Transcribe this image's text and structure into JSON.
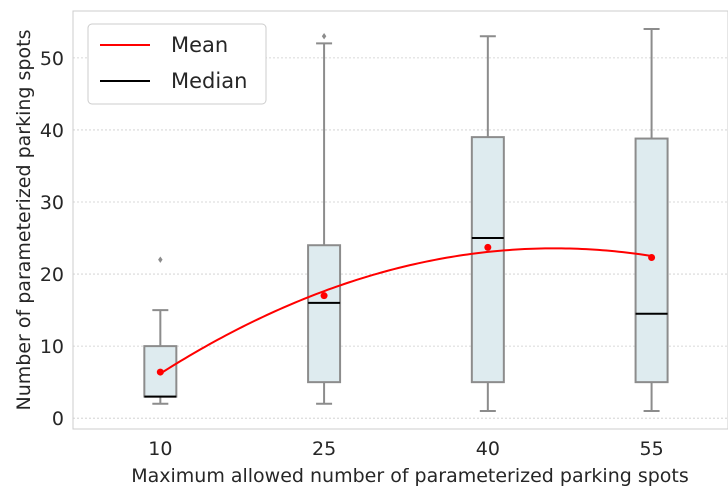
{
  "chart_data": {
    "type": "box",
    "xlabel": "Maximum allowed number of parameterized parking spots",
    "ylabel": "Number of parameterized parking spots",
    "categories": [
      "10",
      "25",
      "40",
      "55"
    ],
    "category_values": [
      10,
      25,
      40,
      55
    ],
    "ylim": [
      -1.5,
      56.5
    ],
    "yticks": [
      0,
      10,
      20,
      30,
      40,
      50
    ],
    "grid": "horizontal",
    "boxes": [
      {
        "category": "10",
        "whisker_low": 2,
        "q1": 3,
        "median": 3,
        "q3": 10,
        "whisker_high": 15,
        "outliers": [
          22
        ]
      },
      {
        "category": "25",
        "whisker_low": 2,
        "q1": 5,
        "median": 16,
        "q3": 24,
        "whisker_high": 52,
        "outliers": [
          53
        ]
      },
      {
        "category": "40",
        "whisker_low": 1,
        "q1": 5,
        "median": 25,
        "q3": 39,
        "whisker_high": 53,
        "outliers": []
      },
      {
        "category": "55",
        "whisker_low": 1,
        "q1": 5,
        "median": 14.5,
        "q3": 38.8,
        "whisker_high": 54,
        "outliers": []
      }
    ],
    "mean_values": [
      6.4,
      17,
      23.7,
      22.3
    ],
    "legend": {
      "position": "top-left",
      "entries": [
        {
          "label": "Mean",
          "color": "#ff0000"
        },
        {
          "label": "Median",
          "color": "#000000"
        }
      ]
    },
    "colors": {
      "box_fill": "#deebef",
      "box_edge": "#8c8c8c",
      "mean": "#ff0000",
      "median": "#000000",
      "grid": "#cccccc",
      "spine": "#cccccc"
    }
  }
}
